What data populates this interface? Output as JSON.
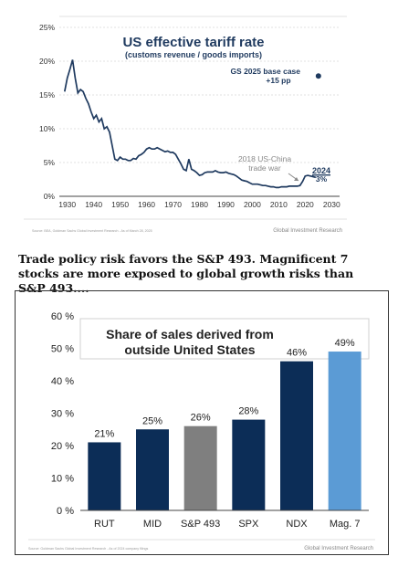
{
  "chart_data": [
    {
      "type": "line",
      "title": "US effective tariff rate",
      "subtitle": "(customs revenue / goods imports)",
      "xlim": [
        1927,
        2033
      ],
      "ylim": [
        0,
        25
      ],
      "x_ticks": [
        "1930",
        "1940",
        "1950",
        "1960",
        "1970",
        "1980",
        "1990",
        "2000",
        "2010",
        "2020",
        "2030"
      ],
      "y_ticks": [
        "0%",
        "5%",
        "10%",
        "15%",
        "20%",
        "25%"
      ],
      "grid": true,
      "series": [
        {
          "color": "#1f3a5f",
          "points": [
            [
              1929,
              15.5
            ],
            [
              1930,
              17.5
            ],
            [
              1931,
              18.8
            ],
            [
              1932,
              20.2
            ],
            [
              1933,
              17.5
            ],
            [
              1934,
              15.3
            ],
            [
              1935,
              15.8
            ],
            [
              1936,
              15.5
            ],
            [
              1937,
              14.5
            ],
            [
              1938,
              13.7
            ],
            [
              1939,
              12.5
            ],
            [
              1940,
              11.5
            ],
            [
              1941,
              12.0
            ],
            [
              1942,
              11.0
            ],
            [
              1943,
              11.5
            ],
            [
              1944,
              10.0
            ],
            [
              1945,
              10.3
            ],
            [
              1946,
              9.5
            ],
            [
              1947,
              7.5
            ],
            [
              1948,
              5.5
            ],
            [
              1949,
              5.3
            ],
            [
              1950,
              5.8
            ],
            [
              1951,
              5.5
            ],
            [
              1952,
              5.5
            ],
            [
              1953,
              5.3
            ],
            [
              1954,
              5.3
            ],
            [
              1955,
              5.6
            ],
            [
              1956,
              5.5
            ],
            [
              1957,
              6.0
            ],
            [
              1958,
              6.2
            ],
            [
              1959,
              6.5
            ],
            [
              1960,
              7.0
            ],
            [
              1961,
              7.2
            ],
            [
              1962,
              7.0
            ],
            [
              1963,
              7.0
            ],
            [
              1964,
              7.2
            ],
            [
              1965,
              7.0
            ],
            [
              1966,
              6.8
            ],
            [
              1967,
              6.6
            ],
            [
              1968,
              6.7
            ],
            [
              1969,
              6.5
            ],
            [
              1970,
              6.5
            ],
            [
              1971,
              6.2
            ],
            [
              1972,
              5.5
            ],
            [
              1973,
              4.8
            ],
            [
              1974,
              4.0
            ],
            [
              1975,
              3.8
            ],
            [
              1976,
              5.5
            ],
            [
              1977,
              4.0
            ],
            [
              1978,
              3.8
            ],
            [
              1979,
              3.5
            ],
            [
              1980,
              3.1
            ],
            [
              1981,
              3.2
            ],
            [
              1982,
              3.5
            ],
            [
              1983,
              3.6
            ],
            [
              1984,
              3.6
            ],
            [
              1985,
              3.6
            ],
            [
              1986,
              3.8
            ],
            [
              1987,
              3.6
            ],
            [
              1988,
              3.5
            ],
            [
              1989,
              3.5
            ],
            [
              1990,
              3.6
            ],
            [
              1991,
              3.4
            ],
            [
              1992,
              3.3
            ],
            [
              1993,
              3.2
            ],
            [
              1994,
              3.0
            ],
            [
              1995,
              2.7
            ],
            [
              1996,
              2.4
            ],
            [
              1997,
              2.3
            ],
            [
              1998,
              2.2
            ],
            [
              1999,
              2.0
            ],
            [
              2000,
              1.8
            ],
            [
              2001,
              1.8
            ],
            [
              2002,
              1.8
            ],
            [
              2003,
              1.7
            ],
            [
              2004,
              1.6
            ],
            [
              2005,
              1.6
            ],
            [
              2006,
              1.5
            ],
            [
              2007,
              1.4
            ],
            [
              2008,
              1.4
            ],
            [
              2009,
              1.3
            ],
            [
              2010,
              1.3
            ],
            [
              2011,
              1.4
            ],
            [
              2012,
              1.4
            ],
            [
              2013,
              1.4
            ],
            [
              2014,
              1.5
            ],
            [
              2015,
              1.5
            ],
            [
              2016,
              1.5
            ],
            [
              2017,
              1.5
            ],
            [
              2018,
              1.6
            ],
            [
              2019,
              2.2
            ],
            [
              2020,
              3.0
            ],
            [
              2021,
              3.1
            ],
            [
              2022,
              3.0
            ],
            [
              2023,
              2.9
            ],
            [
              2024,
              2.8
            ]
          ]
        }
      ],
      "points_special": [
        {
          "label": "GS 2025 base case",
          "sublabel": "+15 pp",
          "x": 2025,
          "y": 17.8,
          "color": "#1f3a5f"
        }
      ],
      "annotations": [
        {
          "text_lines": [
            "2018 US-China",
            "trade war"
          ],
          "color": "#888888"
        },
        {
          "text_lines": [
            "2024",
            "3%"
          ],
          "color": "#1f3a5f"
        }
      ],
      "source": "Source: BEA, Goldman Sachs Global Investment Research - As of March 28, 2025",
      "brand": "Global Investment Research"
    },
    {
      "type": "bar",
      "title_lines": [
        "Share of sales derived from",
        "outside United States"
      ],
      "categories": [
        "RUT",
        "MID",
        "S&P 493",
        "SPX",
        "NDX",
        "Mag. 7"
      ],
      "values": [
        21,
        25,
        26,
        28,
        46,
        49
      ],
      "value_labels": [
        "21%",
        "25%",
        "26%",
        "28%",
        "46%",
        "49%"
      ],
      "colors": [
        "#0c2d57",
        "#0c2d57",
        "#7f7f7f",
        "#0c2d57",
        "#0c2d57",
        "#5b9bd5"
      ],
      "ylim": [
        0,
        60
      ],
      "y_ticks": [
        "0 %",
        "10 %",
        "20 %",
        "30 %",
        "40 %",
        "50 %",
        "60 %"
      ],
      "source": "Source: Goldman Sachs Global Investment Research - As of 2024 company filings",
      "brand": "Global Investment Research"
    }
  ],
  "caption": "Trade policy risk favors the S&P 493. Magnificent 7 stocks are more exposed to global growth risks than S&P 493...."
}
